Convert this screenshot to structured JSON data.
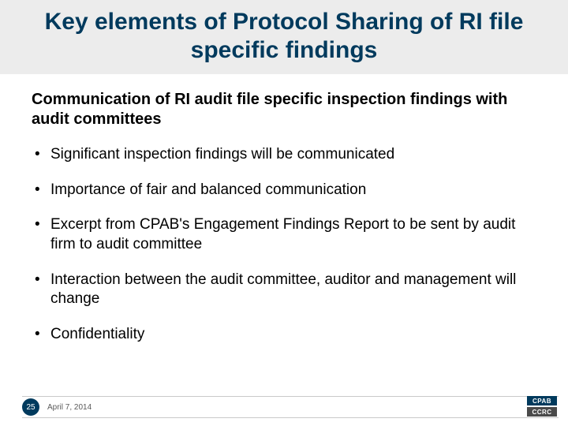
{
  "title": "Key elements of Protocol Sharing of RI file specific findings",
  "subhead": "Communication of RI audit file specific inspection findings with audit committees",
  "bullets": [
    "Significant inspection findings will be communicated",
    "Importance of fair and balanced communication",
    "Excerpt from CPAB's Engagement Findings Report to be sent by audit firm to audit committee",
    "Interaction between the audit committee, auditor and management will change",
    "Confidentiality"
  ],
  "footer": {
    "page_number": "25",
    "date": "April 7, 2014",
    "logo_top": "CPAB",
    "logo_bottom": "CCRC"
  },
  "colors": {
    "title_band_bg": "#ececec",
    "title_color": "#003a5d",
    "text_color": "#000000",
    "badge_bg": "#003a5d",
    "logo_top_bg": "#003a5d",
    "logo_bottom_bg": "#4a4a4a"
  }
}
